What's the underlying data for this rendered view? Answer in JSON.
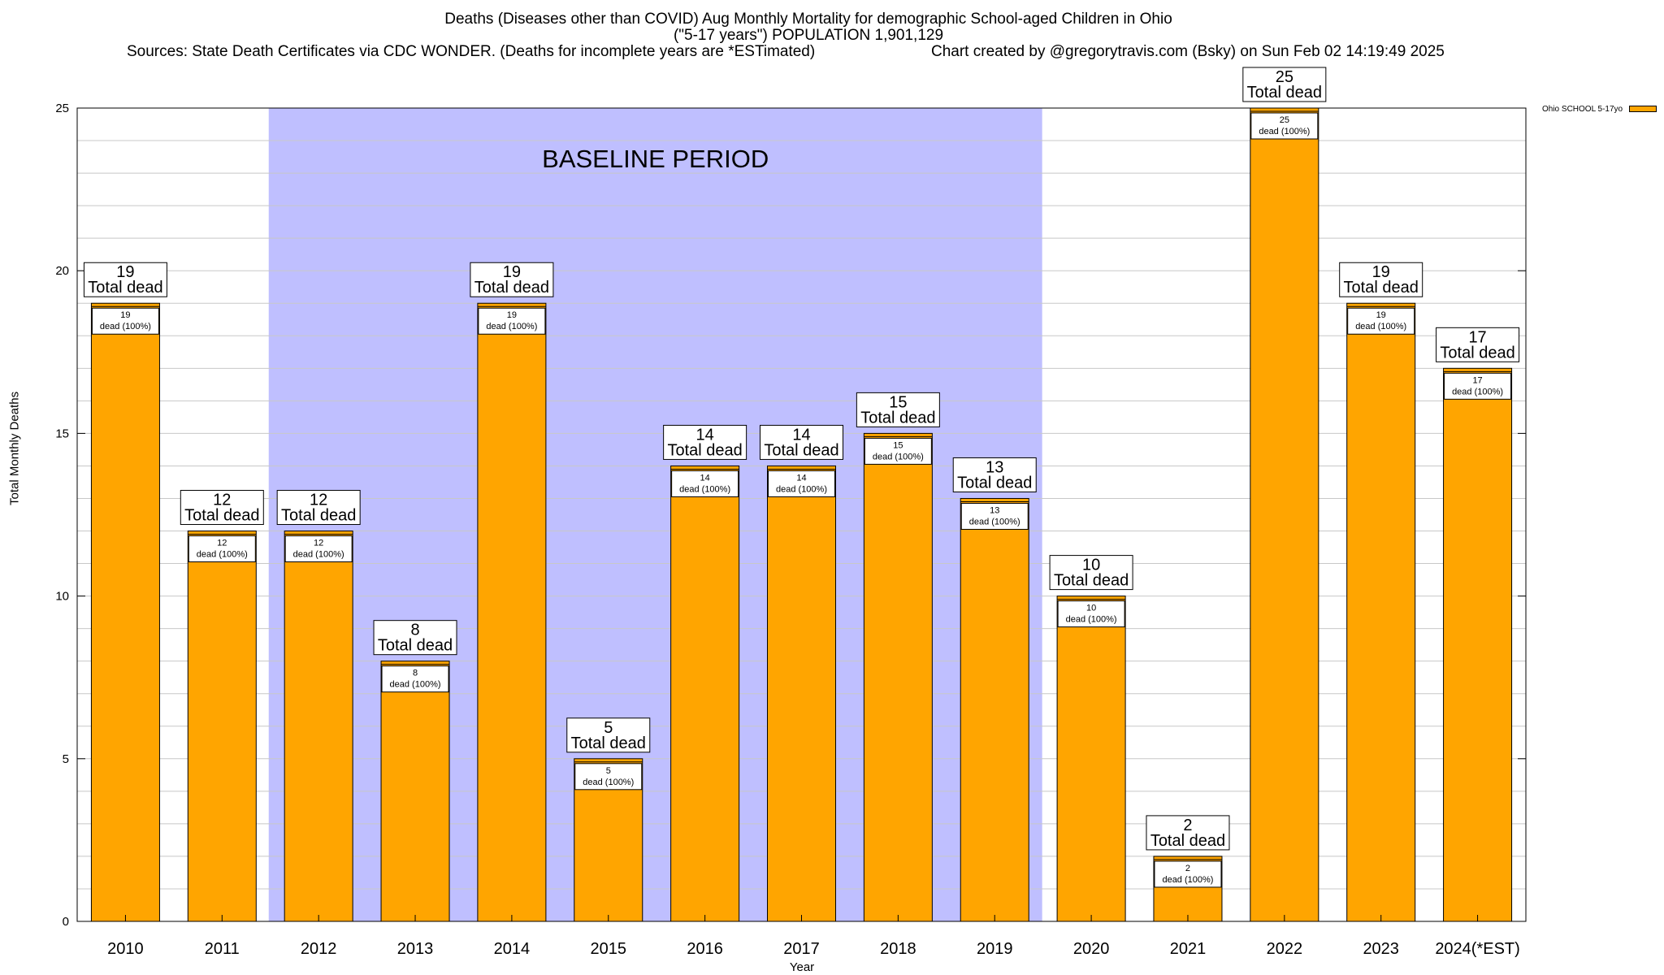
{
  "chart_data": {
    "type": "bar",
    "title": "Deaths (Diseases other than COVID) Aug Monthly Mortality for demographic School-aged Children in Ohio",
    "subtitle": "(\"5-17 years\") POPULATION 1,901,129",
    "sources": "Sources: State Death Certificates via CDC WONDER. (Deaths for incomplete years are *ESTimated)",
    "credit": "Chart created by @gregorytravis.com (Bsky) on Sun Feb 02 14:19:49 2025",
    "xlabel": "Year",
    "ylabel": "Total Monthly Deaths",
    "ylim": [
      0,
      25
    ],
    "yticks": [
      0,
      5,
      10,
      15,
      20,
      25
    ],
    "grid": "horizontal",
    "legend_position": "top-right",
    "categories": [
      "2010",
      "2011",
      "2012",
      "2013",
      "2014",
      "2015",
      "2016",
      "2017",
      "2018",
      "2019",
      "2020",
      "2021",
      "2022",
      "2023",
      "2024(*EST)"
    ],
    "series": [
      {
        "name": "Ohio SCHOOL 5-17yo",
        "color": "#FFA500",
        "values": [
          19,
          12,
          12,
          8,
          19,
          5,
          14,
          14,
          15,
          13,
          10,
          2,
          25,
          19,
          17
        ]
      }
    ],
    "top_label_text": "Total dead",
    "inner_label_text": "dead (100%)",
    "shaded_region": {
      "label": "BASELINE PERIOD",
      "from": "2012",
      "to": "2019",
      "color": "#BFBFFF"
    }
  }
}
